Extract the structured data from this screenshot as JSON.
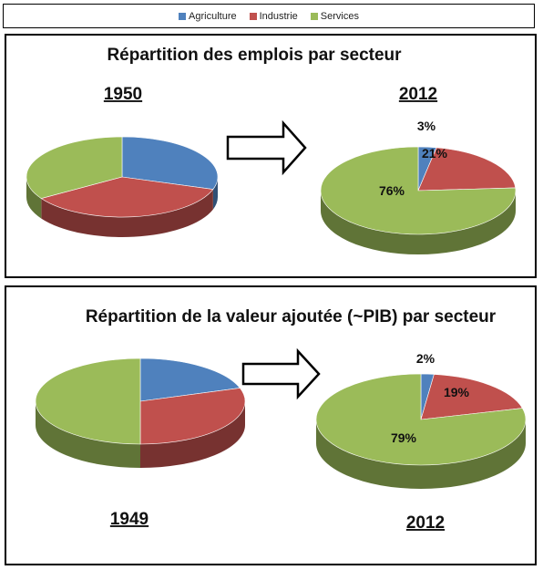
{
  "colors": {
    "agriculture": "#4f81bd",
    "industrie": "#c0504d",
    "services": "#9bbb59"
  },
  "legend": [
    {
      "label": "Agriculture",
      "color_key": "agriculture"
    },
    {
      "label": "Industrie",
      "color_key": "industrie"
    },
    {
      "label": "Services",
      "color_key": "services"
    }
  ],
  "chart_data": [
    {
      "type": "pie",
      "title": "Répartition des emplois par secteur",
      "year": "1950",
      "categories": [
        "Agriculture",
        "Industrie",
        "Services"
      ],
      "values": [
        30,
        36,
        34
      ],
      "data_labels": [
        "",
        "",
        ""
      ]
    },
    {
      "type": "pie",
      "title": "",
      "year": "2012",
      "categories": [
        "Agriculture",
        "Industrie",
        "Services"
      ],
      "values": [
        3,
        21,
        76
      ],
      "data_labels": [
        "3%",
        "21%",
        "76%"
      ]
    },
    {
      "type": "pie",
      "title": "Répartition de la valeur ajoutée (~PIB) par secteur",
      "year": "1949",
      "categories": [
        "Agriculture",
        "Industrie",
        "Services"
      ],
      "values": [
        20,
        30,
        50
      ],
      "data_labels": [
        "",
        "",
        ""
      ]
    },
    {
      "type": "pie",
      "title": "",
      "year": "2012",
      "categories": [
        "Agriculture",
        "Industrie",
        "Services"
      ],
      "values": [
        2,
        19,
        79
      ],
      "data_labels": [
        "2%",
        "19%",
        "79%"
      ]
    }
  ]
}
